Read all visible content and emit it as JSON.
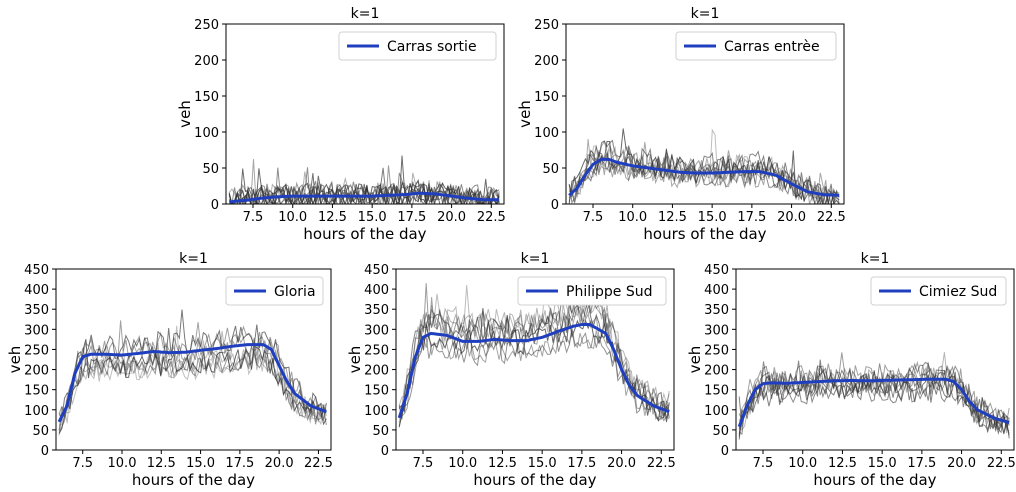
{
  "figure": {
    "line_color": "#1f3fbf",
    "grey_color": "#333333"
  },
  "chart_data": [
    {
      "type": "line",
      "title": "k=1",
      "xlabel": "hours of the day",
      "ylabel": "veh",
      "xlim": [
        5.8,
        23.3
      ],
      "ylim": [
        0,
        250
      ],
      "xticks": [
        "7.5",
        "10.0",
        "12.5",
        "15.0",
        "17.5",
        "20.0",
        "22.5"
      ],
      "yticks": [
        "0",
        "50",
        "100",
        "150",
        "200",
        "250"
      ],
      "legend": "top-right",
      "series": [
        {
          "name": "Carras sortie",
          "x": [
            6,
            7,
            8,
            9,
            10,
            11,
            12,
            13,
            14,
            15,
            16,
            17,
            18,
            19,
            20,
            21,
            22,
            23
          ],
          "values": [
            3,
            5,
            8,
            10,
            11,
            11,
            11,
            11,
            11,
            11,
            12,
            13,
            15,
            14,
            11,
            8,
            6,
            6
          ]
        }
      ]
    },
    {
      "type": "line",
      "title": "k=1",
      "xlabel": "hours of the day",
      "ylabel": "veh",
      "xlim": [
        5.8,
        23.3
      ],
      "ylim": [
        0,
        250
      ],
      "xticks": [
        "7.5",
        "10.0",
        "12.5",
        "15.0",
        "17.5",
        "20.0",
        "22.5"
      ],
      "yticks": [
        "0",
        "50",
        "100",
        "150",
        "200",
        "250"
      ],
      "legend": "top-right",
      "series": [
        {
          "name": "Carras entrèe",
          "x": [
            6,
            6.5,
            7,
            7.5,
            8,
            8.5,
            9,
            10,
            11,
            12,
            13,
            14,
            15,
            16,
            17,
            18,
            19,
            20,
            21,
            22,
            23
          ],
          "values": [
            12,
            22,
            40,
            55,
            62,
            62,
            58,
            53,
            50,
            47,
            44,
            43,
            43,
            44,
            45,
            45,
            40,
            28,
            17,
            13,
            12
          ]
        }
      ]
    },
    {
      "type": "line",
      "title": "k=1",
      "xlabel": "hours of the day",
      "ylabel": "veh",
      "xlim": [
        5.8,
        23.3
      ],
      "ylim": [
        0,
        450
      ],
      "xticks": [
        "7.5",
        "10.0",
        "12.5",
        "15.0",
        "17.5",
        "20.0",
        "22.5"
      ],
      "yticks": [
        "0",
        "50",
        "100",
        "150",
        "200",
        "250",
        "300",
        "350",
        "400",
        "450"
      ],
      "legend": "top-right",
      "series": [
        {
          "name": "Gloria",
          "x": [
            6,
            6.5,
            7,
            7.5,
            8,
            9,
            10,
            11,
            12,
            13,
            14,
            15,
            16,
            17,
            18,
            19,
            19.5,
            20,
            20.5,
            21,
            22,
            23
          ],
          "values": [
            70,
            110,
            190,
            232,
            238,
            238,
            236,
            240,
            245,
            242,
            243,
            248,
            252,
            258,
            262,
            262,
            250,
            210,
            170,
            140,
            110,
            95
          ]
        }
      ]
    },
    {
      "type": "line",
      "title": "k=1",
      "xlabel": "hours of the day",
      "ylabel": "veh",
      "xlim": [
        5.8,
        23.3
      ],
      "ylim": [
        0,
        450
      ],
      "xticks": [
        "7.5",
        "10.0",
        "12.5",
        "15.0",
        "17.5",
        "20.0",
        "22.5"
      ],
      "yticks": [
        "0",
        "50",
        "100",
        "150",
        "200",
        "250",
        "300",
        "350",
        "400",
        "450"
      ],
      "legend": "top-right",
      "series": [
        {
          "name": "Philippe Sud",
          "x": [
            6,
            6.5,
            7,
            7.5,
            8,
            9,
            10,
            11,
            12,
            13,
            14,
            15,
            16,
            17,
            17.5,
            18,
            19,
            19.5,
            20,
            20.5,
            21,
            22,
            23
          ],
          "values": [
            80,
            140,
            230,
            280,
            290,
            285,
            270,
            270,
            275,
            272,
            272,
            280,
            295,
            308,
            312,
            312,
            290,
            250,
            200,
            160,
            135,
            110,
            95
          ]
        }
      ]
    },
    {
      "type": "line",
      "title": "k=1",
      "xlabel": "hours of the day",
      "ylabel": "veh",
      "xlim": [
        5.8,
        23.3
      ],
      "ylim": [
        0,
        450
      ],
      "xticks": [
        "7.5",
        "10.0",
        "12.5",
        "15.0",
        "17.5",
        "20.0",
        "22.5"
      ],
      "yticks": [
        "0",
        "50",
        "100",
        "150",
        "200",
        "250",
        "300",
        "350",
        "400",
        "450"
      ],
      "legend": "top-right",
      "series": [
        {
          "name": "Cimiez Sud",
          "x": [
            6,
            6.5,
            7,
            7.5,
            8,
            9,
            10,
            11,
            12,
            13,
            14,
            15,
            16,
            17,
            18,
            19,
            19.5,
            20,
            20.5,
            21,
            22,
            23
          ],
          "values": [
            58,
            110,
            150,
            165,
            167,
            166,
            168,
            170,
            172,
            173,
            172,
            173,
            174,
            175,
            176,
            176,
            170,
            150,
            120,
            100,
            80,
            68
          ]
        }
      ]
    }
  ]
}
